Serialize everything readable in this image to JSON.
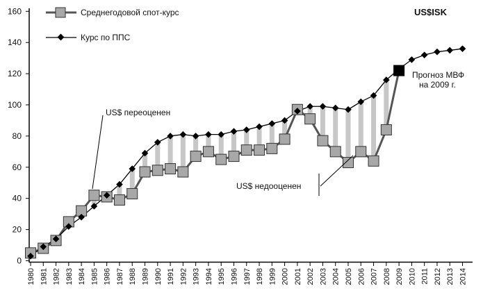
{
  "chart_data": {
    "type": "line",
    "title": "US$ISK",
    "x": [
      1980,
      1981,
      1982,
      1983,
      1984,
      1985,
      1986,
      1987,
      1988,
      1989,
      1990,
      1991,
      1992,
      1993,
      1994,
      1995,
      1996,
      1997,
      1998,
      1999,
      2000,
      2001,
      2002,
      2003,
      2004,
      2005,
      2006,
      2007,
      2008,
      2009,
      2010,
      2011,
      2012,
      2013,
      2014
    ],
    "ylim": [
      0,
      160
    ],
    "yticks": [
      0,
      20,
      40,
      60,
      80,
      100,
      120,
      140,
      160
    ],
    "grid": false,
    "legend_position": "top-left",
    "series": [
      {
        "name": "Среднегодовой спот-курс",
        "x": [
          1980,
          1981,
          1982,
          1983,
          1984,
          1985,
          1986,
          1987,
          1988,
          1989,
          1990,
          1991,
          1992,
          1993,
          1994,
          1995,
          1996,
          1997,
          1998,
          1999,
          2000,
          2001,
          2002,
          2003,
          2004,
          2005,
          2006,
          2007,
          2008
        ],
        "values": [
          5,
          8,
          13,
          25,
          32,
          42,
          41,
          39,
          43,
          57,
          58,
          59,
          57,
          67,
          70,
          65,
          67,
          71,
          71,
          72,
          78,
          97,
          91,
          77,
          70,
          63,
          70,
          64,
          84
        ],
        "color": "#555555",
        "marker": "square",
        "marker_color": "#a8a8a8"
      },
      {
        "name": "Курс по ППС",
        "x": [
          1980,
          1981,
          1982,
          1983,
          1984,
          1985,
          1986,
          1987,
          1988,
          1989,
          1990,
          1991,
          1992,
          1993,
          1994,
          1995,
          1996,
          1997,
          1998,
          1999,
          2000,
          2001,
          2002,
          2003,
          2004,
          2005,
          2006,
          2007,
          2008,
          2009,
          2010,
          2011,
          2012,
          2013,
          2014
        ],
        "values": [
          3,
          9,
          14,
          22,
          28,
          35,
          42,
          49,
          59,
          69,
          76,
          80,
          81,
          80,
          81,
          81,
          83,
          84,
          86,
          88,
          90,
          96,
          99,
          99,
          98,
          97,
          102,
          106,
          116,
          123,
          129,
          132,
          134,
          135,
          136
        ],
        "color": "#000000",
        "marker": "diamond"
      }
    ],
    "forecast": {
      "label_line1": "Прогноз МВФ",
      "label_line2": "на 2009 г.",
      "x": 2009,
      "value": 122,
      "marker": "square",
      "color": "#000000"
    },
    "annotations": {
      "overvalued": "US$ переоценен",
      "undervalued": "US$ недооценен"
    }
  }
}
